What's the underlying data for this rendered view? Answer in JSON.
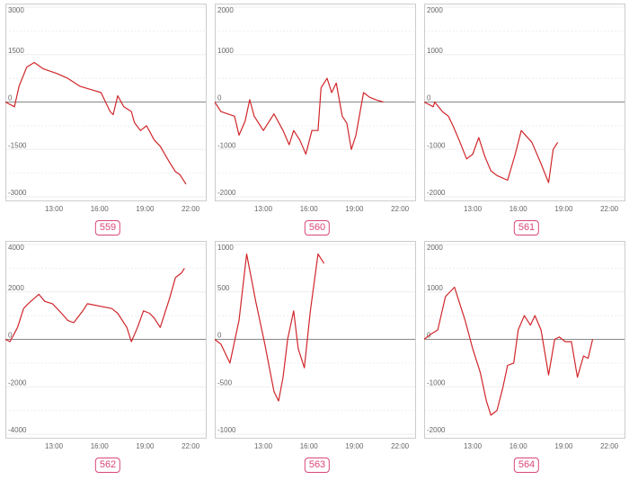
{
  "style": {
    "line_color": "#d0262a",
    "badge_color": "#d9477a",
    "frame_color": "#cccccc",
    "grid_color": "#eeeeee",
    "zero_line_color": "#888888"
  },
  "chart_data": [
    {
      "type": "line",
      "label": "559",
      "ylim": [
        -3000,
        3000
      ],
      "y_ticks": [
        3000,
        1500,
        0,
        -1500,
        -3000
      ],
      "x_tick_labels": [
        "13:00",
        "16:00",
        "19:00",
        "22:00"
      ],
      "x": [
        9.8,
        10.4,
        10.7,
        11.2,
        11.7,
        12.3,
        13.2,
        13.9,
        14.7,
        15.4,
        16.1,
        16.7,
        16.9,
        17.2,
        17.6,
        18.1,
        18.3,
        18.7,
        19.1,
        19.6,
        20.0,
        20.6,
        21.0,
        21.3,
        21.7
      ],
      "values": [
        0,
        -150,
        500,
        1100,
        1250,
        1050,
        900,
        750,
        500,
        400,
        300,
        -300,
        -400,
        200,
        -150,
        -300,
        -650,
        -900,
        -750,
        -1200,
        -1400,
        -1900,
        -2200,
        -2300,
        -2600
      ]
    },
    {
      "type": "line",
      "label": "560",
      "ylim": [
        -2000,
        2000
      ],
      "y_ticks": [
        2000,
        1000,
        0,
        -1000,
        -2000
      ],
      "x_tick_labels": [
        "13:00",
        "16:00",
        "19:00",
        "22:00"
      ],
      "x": [
        9.8,
        10.2,
        11.1,
        11.4,
        11.8,
        12.1,
        12.4,
        13.0,
        13.7,
        14.3,
        14.7,
        15.0,
        15.4,
        15.8,
        16.2,
        16.6,
        16.8,
        17.2,
        17.5,
        17.8,
        18.2,
        18.5,
        18.8,
        19.1,
        19.6,
        20.0,
        20.4,
        20.9
      ],
      "values": [
        0,
        -200,
        -300,
        -700,
        -400,
        50,
        -300,
        -600,
        -250,
        -600,
        -900,
        -600,
        -800,
        -1100,
        -600,
        -600,
        300,
        500,
        200,
        400,
        -300,
        -450,
        -1000,
        -700,
        200,
        100,
        50,
        0
      ]
    },
    {
      "type": "line",
      "label": "561",
      "ylim": [
        -2000,
        2000
      ],
      "y_ticks": [
        2000,
        1000,
        0,
        -1000,
        -2000
      ],
      "x_tick_labels": [
        "13:00",
        "16:00",
        "19:00",
        "22:00"
      ],
      "x": [
        9.8,
        10.1,
        10.4,
        10.5,
        11.0,
        11.4,
        11.7,
        12.1,
        12.6,
        13.0,
        13.4,
        13.8,
        14.2,
        14.6,
        15.3,
        15.8,
        16.2,
        16.9,
        17.5,
        18.0,
        18.3,
        18.6
      ],
      "values": [
        0,
        -50,
        -100,
        0,
        -200,
        -300,
        -500,
        -800,
        -1200,
        -1100,
        -750,
        -1150,
        -1450,
        -1550,
        -1650,
        -1100,
        -600,
        -850,
        -1300,
        -1700,
        -1000,
        -850
      ]
    },
    {
      "type": "line",
      "label": "562",
      "ylim": [
        -4000,
        4000
      ],
      "y_ticks": [
        4000,
        2000,
        0,
        -2000,
        -4000
      ],
      "x_tick_labels": [
        "13:00",
        "16:00",
        "19:00",
        "22:00"
      ],
      "x": [
        9.8,
        10.1,
        10.6,
        11.0,
        11.3,
        12.0,
        12.4,
        12.9,
        13.5,
        13.9,
        14.3,
        14.9,
        15.2,
        16.8,
        17.2,
        17.8,
        18.1,
        18.5,
        18.9,
        19.3,
        19.6,
        20.0,
        20.6,
        21.0,
        21.4,
        21.6
      ],
      "values": [
        0,
        -100,
        500,
        1300,
        1500,
        1900,
        1600,
        1500,
        1100,
        800,
        700,
        1200,
        1500,
        1300,
        1100,
        500,
        -100,
        500,
        1200,
        1100,
        900,
        500,
        1700,
        2600,
        2800,
        3000
      ]
    },
    {
      "type": "line",
      "label": "563",
      "ylim": [
        -1000,
        1000
      ],
      "y_ticks": [
        1000,
        500,
        0,
        -500,
        -1000
      ],
      "x_tick_labels": [
        "13:00",
        "16:00",
        "19:00",
        "22:00"
      ],
      "x": [
        9.8,
        10.2,
        10.8,
        11.4,
        11.9,
        12.5,
        13.1,
        13.4,
        13.7,
        14.0,
        14.3,
        14.6,
        15.0,
        15.3,
        15.7,
        16.1,
        16.6,
        17.0
      ],
      "values": [
        0,
        -50,
        -250,
        200,
        900,
        400,
        -50,
        -300,
        -550,
        -650,
        -400,
        0,
        300,
        -100,
        -300,
        300,
        900,
        800
      ]
    },
    {
      "type": "line",
      "label": "564",
      "ylim": [
        -2000,
        2000
      ],
      "y_ticks": [
        2000,
        1000,
        0,
        -1000,
        -2000
      ],
      "x_tick_labels": [
        "13:00",
        "16:00",
        "19:00",
        "22:00"
      ],
      "x": [
        9.8,
        10.2,
        10.7,
        11.2,
        11.8,
        12.5,
        13.0,
        13.5,
        13.9,
        14.2,
        14.6,
        15.0,
        15.3,
        15.7,
        16.0,
        16.4,
        16.8,
        17.1,
        17.5,
        18.0,
        18.4,
        18.7,
        19.1,
        19.5,
        19.9,
        20.3,
        20.6,
        20.9
      ],
      "values": [
        0,
        100,
        200,
        900,
        1100,
        400,
        -200,
        -700,
        -1300,
        -1600,
        -1500,
        -1000,
        -550,
        -500,
        200,
        500,
        300,
        500,
        200,
        -750,
        0,
        50,
        -50,
        -50,
        -800,
        -350,
        -400,
        0
      ]
    }
  ]
}
